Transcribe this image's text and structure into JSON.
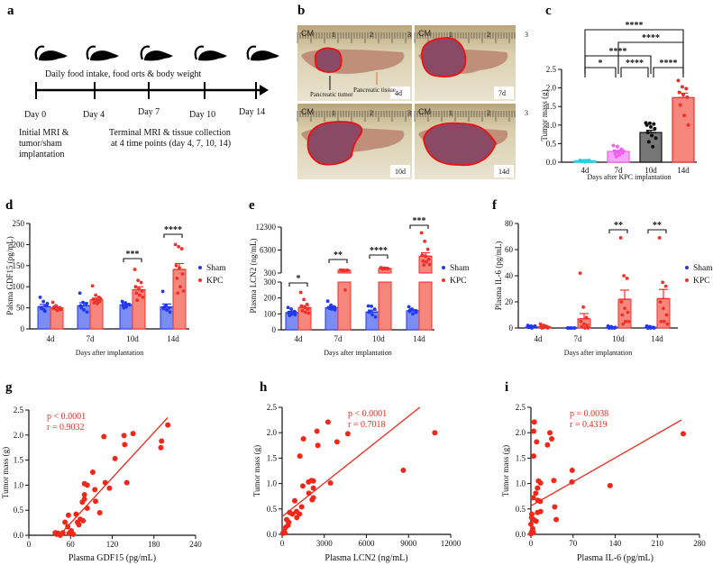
{
  "panel_labels": {
    "a": "a",
    "b": "b",
    "c": "c",
    "d": "d",
    "e": "e",
    "f": "f",
    "g": "g",
    "h": "h",
    "i": "i"
  },
  "panel_a": {
    "daily_text": "Daily food intake, food orts & body weight",
    "days": [
      "Day 0",
      "Day 4",
      "Day 7",
      "Day 10",
      "Day 14"
    ],
    "initial_lines": [
      "Initial MRI &",
      "tumor/sham",
      "implantation"
    ],
    "terminal_lines": [
      "Terminal MRI & tissue collection",
      "at 4 time points (day 4, 7, 10, 14)"
    ]
  },
  "panel_b": {
    "ruler": {
      "unit": "CM",
      "marks": [
        "1",
        "2",
        "3"
      ]
    },
    "photos": [
      "4d",
      "7d",
      "10d",
      "14d"
    ],
    "tumor_label": "Pancreatic tumor",
    "tissue_label": "Pancreatic tissue"
  },
  "colors": {
    "sham": "#2038f0",
    "sham_fill": "#7b8cf2",
    "kpc": "#f0302a",
    "kpc_fill": "#f7877c",
    "c4": "#22d0e8",
    "c7": "#f060f0",
    "c7_fill": "#f6a6f6",
    "c10": "#111111",
    "c10_fill": "#777777",
    "c14": "#f0302a",
    "c14_fill": "#f7877c"
  },
  "chart_data": [
    {
      "id": "c",
      "type": "bar",
      "ylabel": "Tumor mass (g)",
      "xlabel": "Days after KPC implantation",
      "categories": [
        "4d",
        "7d",
        "10d",
        "14d"
      ],
      "ylim": [
        0,
        2.5
      ],
      "yticks": [
        "0.0",
        "0.5",
        "1.0",
        "1.5",
        "2.0",
        "2.5"
      ],
      "means": [
        0.04,
        0.29,
        0.8,
        1.74
      ],
      "sem": [
        0.01,
        0.03,
        0.06,
        0.12
      ],
      "points": [
        [
          0.05,
          0.04,
          0.03,
          0.02,
          0.01,
          0.05,
          0.03,
          0.04
        ],
        [
          0.45,
          0.42,
          0.35,
          0.3,
          0.28,
          0.25,
          0.22,
          0.2,
          0.3,
          0.15
        ],
        [
          1.06,
          1.05,
          1.03,
          1.0,
          0.95,
          0.9,
          0.8,
          0.72,
          0.65,
          0.55,
          0.42
        ],
        [
          2.2,
          2.03,
          1.98,
          1.88,
          1.82,
          1.75,
          1.54,
          1.26,
          1.0
        ]
      ],
      "comparisons": [
        {
          "from": 0,
          "to": 3,
          "label": "****"
        },
        {
          "from": 1,
          "to": 3,
          "label": "****"
        },
        {
          "from": 0,
          "to": 2,
          "label": "****"
        },
        {
          "from": 0,
          "to": 1,
          "label": "*"
        },
        {
          "from": 1,
          "to": 2,
          "label": "****"
        },
        {
          "from": 2,
          "to": 3,
          "label": "****"
        }
      ]
    },
    {
      "id": "d",
      "type": "bar",
      "ylabel": "Palsma GDF15 (pg/mL)",
      "xlabel": "Days after implantation",
      "categories": [
        "4d",
        "7d",
        "10d",
        "14d"
      ],
      "ylim": [
        0,
        250
      ],
      "yticks": [
        "0",
        "50",
        "100",
        "150",
        "200",
        "250"
      ],
      "legend": [
        "Sham",
        "KPC"
      ],
      "series": [
        {
          "name": "Sham",
          "means": [
            53,
            55,
            57,
            52
          ],
          "sem": [
            5,
            7,
            3,
            7
          ],
          "points": [
            [
              75,
              65,
              55,
              50,
              45,
              60,
              48,
              42
            ],
            [
              85,
              63,
              60,
              55,
              45,
              40,
              50
            ],
            [
              65,
              62,
              58,
              55,
              52,
              57,
              50
            ],
            [
              89,
              55,
              50,
              48,
              45,
              40,
              52
            ]
          ]
        },
        {
          "name": "KPC",
          "means": [
            50,
            69,
            93,
            141
          ],
          "sem": [
            3,
            4,
            7,
            14
          ],
          "points": [
            [
              63,
              55,
              50,
              48,
              45,
              47,
              52,
              44,
              46
            ],
            [
              102,
              80,
              75,
              70,
              68,
              65,
              62,
              60,
              72
            ],
            [
              141,
              115,
              110,
              100,
              95,
              90,
              85,
              80,
              75,
              68
            ],
            [
              200,
              195,
              190,
              150,
              145,
              130,
              120,
              100,
              90,
              85
            ]
          ]
        }
      ],
      "significance": [
        null,
        null,
        "***",
        "****"
      ]
    },
    {
      "id": "e",
      "type": "bar",
      "ylabel": "Plasma LCN2 (ng/mL)",
      "xlabel": "Days after implantation",
      "categories": [
        "4d",
        "7d",
        "10d",
        "14d"
      ],
      "axis_break": 300,
      "ylim_lower": [
        0,
        300
      ],
      "yticks_lower": [
        "0",
        "100",
        "200",
        "300"
      ],
      "ylim_upper": [
        300,
        12300
      ],
      "yticks_upper": [
        "300",
        "6300",
        "12300"
      ],
      "legend": [
        "Sham",
        "KPC"
      ],
      "series": [
        {
          "name": "Sham",
          "means": [
            108,
            138,
            112,
            120
          ],
          "sem": [
            8,
            7,
            12,
            6
          ],
          "points": [
            [
              140,
              130,
              115,
              105,
              100,
              95,
              90,
              110
            ],
            [
              180,
              155,
              145,
              140,
              130,
              125,
              135
            ],
            [
              150,
              148,
              130,
              110,
              95,
              80,
              115
            ],
            [
              145,
              130,
              120,
              115,
              100,
              110,
              125
            ]
          ]
        },
        {
          "name": "KPC",
          "means": [
            140,
            1000,
            1500,
            4700
          ],
          "sem": [
            12,
            60,
            60,
            900
          ],
          "points": [
            [
              235,
              190,
              160,
              150,
              140,
              130,
              120,
              110,
              105
            ],
            [
              1100,
              1050,
              1000,
              1000,
              950,
              1020,
              980,
              250
            ],
            [
              1700,
              1600,
              1500,
              1550,
              1450,
              1400,
              1350,
              1500
            ],
            [
              10800,
              8600,
              6500,
              5000,
              4700,
              3900,
              3400,
              3200,
              2500,
              2400
            ]
          ]
        }
      ],
      "significance": [
        "*",
        "**",
        "****",
        "***"
      ]
    },
    {
      "id": "f",
      "type": "bar",
      "ylabel": "Plasma IL-6 (pg/mL)",
      "xlabel": "Days after implantation",
      "categories": [
        "4d",
        "7d",
        "10d",
        "14d"
      ],
      "ylim": [
        0,
        80
      ],
      "yticks": [
        "0",
        "20",
        "40",
        "60",
        "80"
      ],
      "legend": [
        "Sham",
        "KPC"
      ],
      "series": [
        {
          "name": "Sham",
          "means": [
            0.8,
            0.3,
            0.5,
            0.5
          ],
          "sem": [
            0.3,
            0.1,
            0.3,
            0.3
          ],
          "points": [
            [
              2,
              1.5,
              1,
              0.5,
              0,
              1.5,
              0.5
            ],
            [
              0,
              0,
              0,
              0,
              0,
              0,
              0
            ],
            [
              1.5,
              1,
              0,
              0,
              0,
              0.5,
              0
            ],
            [
              1.5,
              1,
              0.5,
              0,
              0,
              0,
              0
            ]
          ]
        },
        {
          "name": "KPC",
          "means": [
            1,
            7,
            22,
            22.5
          ],
          "sem": [
            0.4,
            4,
            7,
            7
          ],
          "points": [
            [
              3,
              2,
              1,
              1,
              0.5,
              0,
              0,
              1.5
            ],
            [
              42,
              16,
              8,
              5,
              3,
              2,
              1,
              0,
              0
            ],
            [
              69,
              40,
              38,
              20,
              15,
              12,
              10,
              5,
              5,
              3
            ],
            [
              69,
              35,
              32,
              20,
              15,
              10,
              5,
              5,
              3
            ]
          ]
        }
      ],
      "significance": [
        null,
        null,
        "**",
        "**"
      ]
    },
    {
      "id": "g",
      "type": "scatter",
      "xlabel": "Plasma GDF15 (pg/mL)",
      "ylabel": "Tumor mass (g)",
      "xlim": [
        0,
        240
      ],
      "xticks": [
        "0",
        "60",
        "120",
        "180",
        "240"
      ],
      "ylim": [
        0,
        2.5
      ],
      "yticks": [
        "0.0",
        "0.5",
        "1.0",
        "1.5",
        "2.0",
        "2.5"
      ],
      "stats": [
        "p < 0.0001",
        "r = 0.9032"
      ],
      "fit": [
        [
          44,
          0
        ],
        [
          200,
          2.35
        ]
      ],
      "points": [
        [
          108,
          1.97
        ],
        [
          137,
          1.99
        ],
        [
          150,
          2.03
        ],
        [
          200,
          2.2
        ],
        [
          191,
          1.88
        ],
        [
          190,
          1.75
        ],
        [
          138,
          1.81
        ],
        [
          124,
          1.53
        ],
        [
          92,
          1.26
        ],
        [
          110,
          1.05
        ],
        [
          141,
          1.05
        ],
        [
          116,
          0.94
        ],
        [
          95,
          0.91
        ],
        [
          80,
          1.03
        ],
        [
          84,
          1.0
        ],
        [
          80,
          0.81
        ],
        [
          80,
          0.72
        ],
        [
          77,
          0.66
        ],
        [
          96,
          0.68
        ],
        [
          84,
          0.54
        ],
        [
          102,
          0.45
        ],
        [
          68,
          0.42
        ],
        [
          57,
          0.4
        ],
        [
          74,
          0.32
        ],
        [
          78,
          0.29
        ],
        [
          70,
          0.26
        ],
        [
          72,
          0.21
        ],
        [
          52,
          0.26
        ],
        [
          56,
          0.17
        ],
        [
          61,
          0.09
        ],
        [
          49,
          0.05
        ],
        [
          64,
          0.02
        ],
        [
          58,
          0.04
        ],
        [
          38,
          0.05
        ],
        [
          42,
          0.04
        ],
        [
          45,
          0.0
        ],
        [
          40,
          0.02
        ]
      ]
    },
    {
      "id": "h",
      "type": "scatter",
      "xlabel": "Plasma LCN2 (ng/mL)",
      "ylabel": "Tumor mass (g)",
      "xlim": [
        0,
        12000
      ],
      "xticks": [
        "0",
        "3000",
        "6000",
        "9000",
        "12000"
      ],
      "ylim": [
        0,
        2.5
      ],
      "yticks": [
        "0.0",
        "0.5",
        "1.0",
        "1.5",
        "2.0",
        "2.5"
      ],
      "stats": [
        "p < 0.0001",
        "r = 0.7018"
      ],
      "fit": [
        [
          0,
          0.35
        ],
        [
          9800,
          2.5
        ]
      ],
      "points": [
        [
          3267,
          2.21
        ],
        [
          2477,
          2.03
        ],
        [
          4676,
          1.98
        ],
        [
          10868,
          2.0
        ],
        [
          1516,
          1.88
        ],
        [
          3908,
          1.82
        ],
        [
          2541,
          1.75
        ],
        [
          1260,
          1.54
        ],
        [
          8626,
          1.26
        ],
        [
          2093,
          1.06
        ],
        [
          1879,
          1.03
        ],
        [
          2221,
          1.05
        ],
        [
          3438,
          1.01
        ],
        [
          1473,
          0.95
        ],
        [
          2221,
          0.91
        ],
        [
          1900,
          0.81
        ],
        [
          2221,
          0.72
        ],
        [
          2135,
          0.68
        ],
        [
          897,
          0.66
        ],
        [
          1388,
          0.54
        ],
        [
          1025,
          0.45
        ],
        [
          1238,
          0.4
        ],
        [
          726,
          0.4
        ],
        [
          534,
          0.43
        ],
        [
          1046,
          0.33
        ],
        [
          470,
          0.24
        ],
        [
          320,
          0.29
        ],
        [
          427,
          0.18
        ],
        [
          256,
          0.14
        ],
        [
          149,
          0.06
        ],
        [
          43,
          0.02
        ],
        [
          192,
          0.03
        ]
      ]
    },
    {
      "id": "i",
      "type": "scatter",
      "xlabel": "Plasma IL-6 (pg/mL)",
      "ylabel": "Tumor mass (g)",
      "xlim": [
        0,
        280
      ],
      "xticks": [
        "0",
        "70",
        "140",
        "210",
        "280"
      ],
      "ylim": [
        0,
        2.5
      ],
      "yticks": [
        "0.0",
        "0.5",
        "1.0",
        "1.5",
        "2.0",
        "2.5"
      ],
      "stats": [
        "p = 0.0038",
        "r = 0.4319"
      ],
      "fit": [
        [
          0,
          0.56
        ],
        [
          250,
          2.25
        ]
      ],
      "points": [
        [
          5.5,
          2.21
        ],
        [
          4.5,
          2.03
        ],
        [
          31.5,
          2.0
        ],
        [
          253,
          1.98
        ],
        [
          34.5,
          1.88
        ],
        [
          9.5,
          1.82
        ],
        [
          27.5,
          1.76
        ],
        [
          4.5,
          1.54
        ],
        [
          68.5,
          1.26
        ],
        [
          68,
          1.03
        ],
        [
          38,
          1.06
        ],
        [
          12.5,
          1.05
        ],
        [
          16,
          1.01
        ],
        [
          131.5,
          0.96
        ],
        [
          11,
          0.91
        ],
        [
          8,
          0.81
        ],
        [
          4,
          0.72
        ],
        [
          11.5,
          0.67
        ],
        [
          15.5,
          0.65
        ],
        [
          39.5,
          0.54
        ],
        [
          11,
          0.43
        ],
        [
          16,
          0.45
        ],
        [
          42,
          0.29
        ],
        [
          8.5,
          0.26
        ],
        [
          4.5,
          0.29
        ],
        [
          1.5,
          0.4
        ],
        [
          1,
          0.33
        ],
        [
          0,
          0.2
        ],
        [
          3,
          0.11
        ],
        [
          1.5,
          0.05
        ],
        [
          4,
          0.04
        ],
        [
          0,
          0.01
        ]
      ]
    }
  ]
}
